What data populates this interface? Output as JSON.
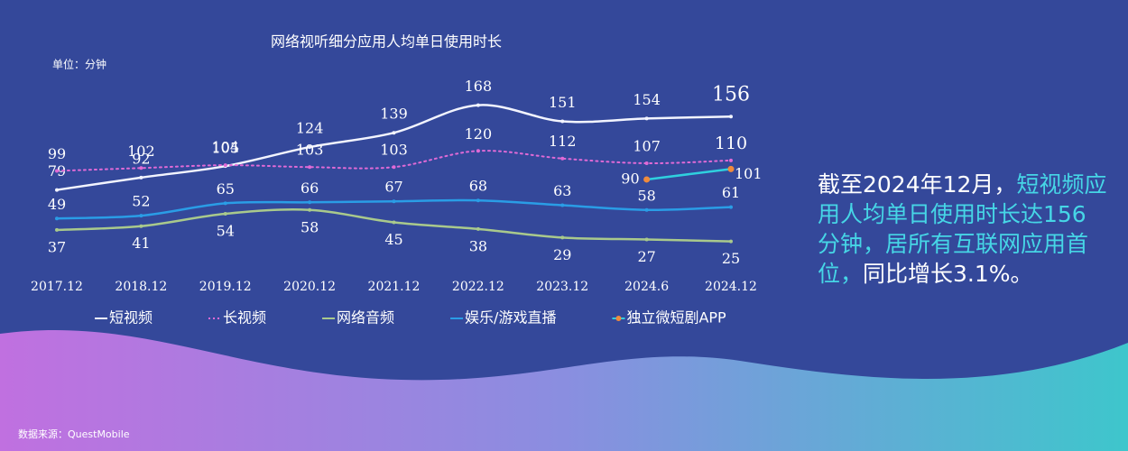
{
  "chart_data": {
    "type": "line",
    "title": "网络视听细分应用人均单日使用时长",
    "unit_label": "单位：分钟",
    "categories": [
      "2017.12",
      "2018.12",
      "2019.12",
      "2020.12",
      "2021.12",
      "2022.12",
      "2023.12",
      "2024.6",
      "2024.12"
    ],
    "series": [
      {
        "name": "短视频",
        "color": "#f2f4ff",
        "style": "solid",
        "values": [
          79,
          92,
          104,
          124,
          139,
          168,
          151,
          154,
          156
        ]
      },
      {
        "name": "长视频",
        "color": "#e06ad6",
        "style": "dotted",
        "values": [
          99,
          102,
          105,
          103,
          103,
          120,
          112,
          107,
          110
        ]
      },
      {
        "name": "网络音频",
        "color": "#a9c98c",
        "style": "solid",
        "values": [
          37,
          41,
          54,
          58,
          45,
          38,
          29,
          27,
          25
        ]
      },
      {
        "name": "娱乐/游戏直播",
        "color": "#2a9de6",
        "style": "solid",
        "values": [
          49,
          52,
          65,
          66,
          67,
          68,
          63,
          58,
          61
        ]
      },
      {
        "name": "独立微短剧APP",
        "color": "#2fd0de",
        "marker_color": "#f08a3c",
        "style": "solid",
        "values": [
          null,
          null,
          null,
          null,
          null,
          null,
          null,
          90,
          101
        ]
      }
    ]
  },
  "summary": {
    "lead": "截至2024年12月，",
    "highlight": "短视频应用人均单日使用时长达156分钟，居所有互联网应用首位，",
    "tail": "同比增长3.1%。"
  },
  "source": "数据来源：QuestMobile"
}
